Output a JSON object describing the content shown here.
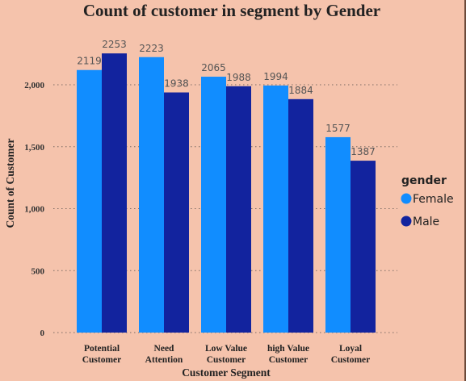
{
  "chart_data": {
    "type": "bar",
    "title": "Count of customer in segment by Gender",
    "xlabel": "Customer Segment",
    "ylabel": "Count of Customer",
    "categories": [
      [
        "Potential",
        "Customer"
      ],
      [
        "Need",
        "Attention"
      ],
      [
        "Low Value",
        "Customer"
      ],
      [
        "high Value",
        "Customer"
      ],
      [
        "Loyal",
        "Customer"
      ]
    ],
    "series": [
      {
        "name": "Female",
        "color": "#118dff",
        "values": [
          2119,
          2223,
          2065,
          1994,
          1577
        ]
      },
      {
        "name": "Male",
        "color": "#12239e",
        "values": [
          2253,
          1938,
          1988,
          1884,
          1387
        ]
      }
    ],
    "yticks": [
      0,
      500,
      1000,
      1500,
      2000
    ],
    "ytick_labels": [
      "0",
      "500",
      "1,000",
      "1,500",
      "2,000"
    ],
    "ylim": [
      0,
      2500
    ],
    "grid": "dotted-horizontal",
    "legend": {
      "title": "gender",
      "position": "right"
    }
  }
}
